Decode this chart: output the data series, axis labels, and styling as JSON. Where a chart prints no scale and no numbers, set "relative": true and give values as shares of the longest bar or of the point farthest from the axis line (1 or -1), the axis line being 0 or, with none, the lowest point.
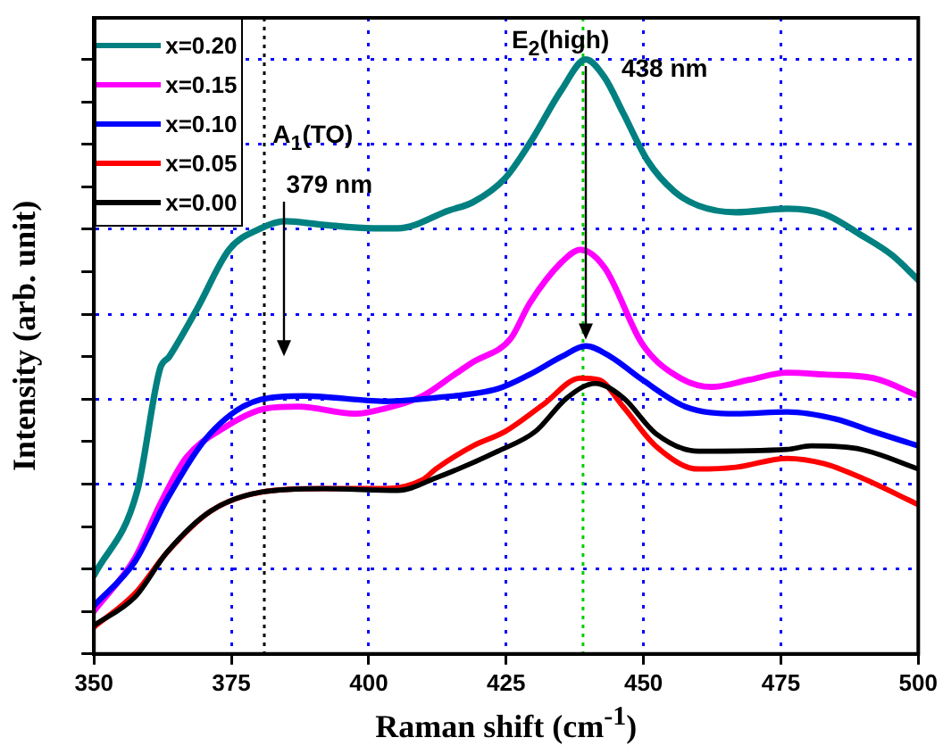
{
  "chart_data": {
    "type": "line",
    "relative": true,
    "xlabel": "Raman shift (cm$^{-1}$)",
    "ylabel": "Intensity (arb. unit)",
    "xlim": [
      350,
      500
    ],
    "xticks": [
      350,
      375,
      400,
      425,
      450,
      475,
      500
    ],
    "grid": true,
    "legend": "top left",
    "line_style": "solid",
    "marker": "none",
    "series": [
      {
        "name": "x=0.20",
        "color": "#008080",
        "x": [
          350,
          357.9,
          362,
          363.7,
          368.8,
          374.6,
          380.4,
          384.8,
          391.6,
          400.9,
          405.3,
          414.6,
          419,
          424.8,
          429.3,
          435.1,
          439.5,
          442.9,
          446.3,
          450.8,
          455.6,
          460,
          466.8,
          476.1,
          482.9,
          489.7,
          495.2,
          500
        ],
        "values": [
          0.132,
          0.275,
          0.479,
          0.5,
          0.581,
          0.68,
          0.716,
          0.728,
          0.722,
          0.716,
          0.716,
          0.746,
          0.76,
          0.8,
          0.859,
          0.949,
          1.0,
          0.97,
          0.91,
          0.829,
          0.778,
          0.754,
          0.743,
          0.749,
          0.74,
          0.704,
          0.671,
          0.629
        ]
      },
      {
        "name": "x=0.15",
        "color": "#ff00ff",
        "x": [
          350,
          357.5,
          362,
          366.7,
          373.6,
          381.4,
          387.2,
          397.5,
          403,
          409.8,
          415.6,
          419,
          425.8,
          429.3,
          435.1,
          438.5,
          442.9,
          449.8,
          455.6,
          462.4,
          469.2,
          476.1,
          482.9,
          491.8,
          500
        ],
        "values": [
          0.072,
          0.162,
          0.251,
          0.329,
          0.38,
          0.413,
          0.416,
          0.404,
          0.413,
          0.434,
          0.47,
          0.491,
          0.53,
          0.59,
          0.659,
          0.68,
          0.65,
          0.521,
          0.47,
          0.449,
          0.461,
          0.473,
          0.47,
          0.464,
          0.434
        ]
      },
      {
        "name": "x=0.10",
        "color": "#0000ff",
        "x": [
          350,
          357.5,
          363.3,
          371.2,
          380.4,
          388.3,
          403,
          412.2,
          423.5,
          429.3,
          435.1,
          439.5,
          444,
          449.8,
          457.6,
          466.8,
          476.1,
          485,
          491.8,
          500
        ],
        "values": [
          0.081,
          0.156,
          0.26,
          0.371,
          0.428,
          0.434,
          0.425,
          0.431,
          0.446,
          0.47,
          0.5,
          0.518,
          0.5,
          0.461,
          0.416,
          0.404,
          0.407,
          0.395,
          0.374,
          0.35
        ]
      },
      {
        "name": "x=0.05",
        "color": "#ff0000",
        "x": [
          350,
          357.5,
          363.3,
          371.2,
          380.4,
          391.7,
          403,
          409.8,
          412.2,
          419,
          424.8,
          431.7,
          438.5,
          441.9,
          446.3,
          452.2,
          460,
          466.8,
          476.1,
          482.9,
          489.7,
          500
        ],
        "values": [
          0.045,
          0.102,
          0.171,
          0.24,
          0.272,
          0.278,
          0.278,
          0.293,
          0.311,
          0.35,
          0.374,
          0.419,
          0.464,
          0.461,
          0.416,
          0.35,
          0.311,
          0.314,
          0.329,
          0.32,
          0.296,
          0.251
        ]
      },
      {
        "name": "x=0.00",
        "color": "#000000",
        "x": [
          350,
          357.5,
          363.3,
          371.2,
          380.4,
          391.7,
          405.3,
          412.2,
          423.5,
          430.3,
          436.1,
          441.2,
          446.3,
          452.2,
          460,
          476.1,
          480.5,
          489.7,
          500
        ],
        "values": [
          0.048,
          0.096,
          0.171,
          0.24,
          0.272,
          0.278,
          0.275,
          0.296,
          0.341,
          0.374,
          0.431,
          0.455,
          0.431,
          0.371,
          0.341,
          0.344,
          0.35,
          0.344,
          0.311
        ]
      }
    ],
    "ref_lines": [
      {
        "axis": "x",
        "value": 381,
        "color": "#000000",
        "line_style": "dotted"
      },
      {
        "axis": "x",
        "value": 439,
        "color": "#00cc00",
        "line_style": "dotted"
      }
    ],
    "annotations": [
      "A$_{1}$(TO)",
      "379 nm",
      "E$_{2}$(high)",
      "438 nm"
    ]
  }
}
